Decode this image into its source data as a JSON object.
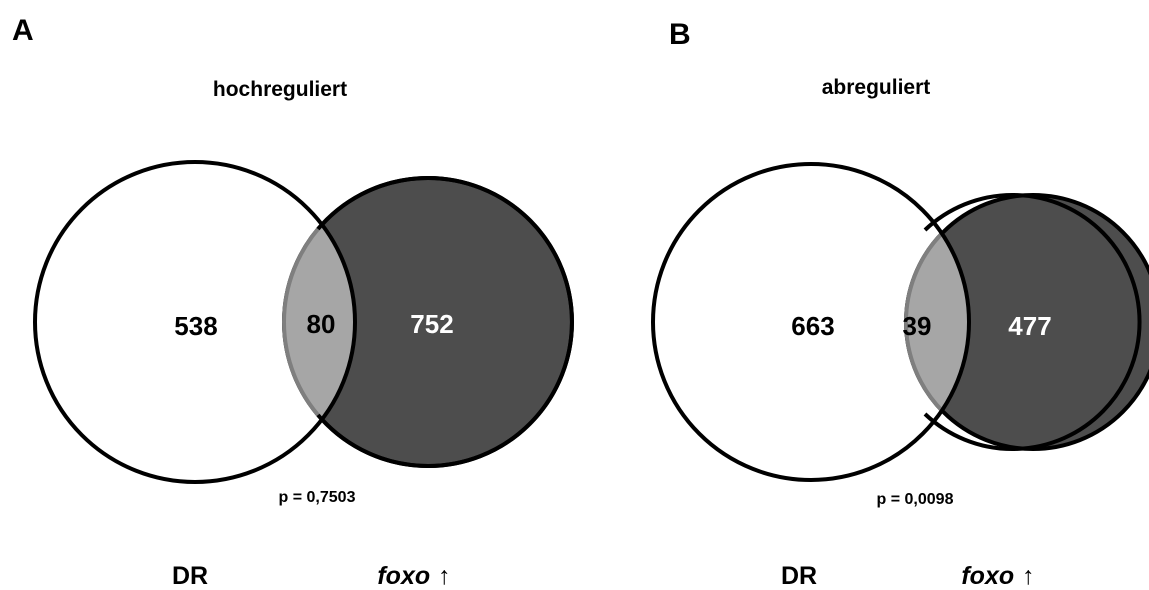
{
  "colors": {
    "left_circle_fill": "#ffffff",
    "right_circle_fill": "#4d4d4d",
    "overlap_fill": "#a6a6a6",
    "overlap_stroke": "#7f7f7f",
    "outline": "#000000",
    "text_dark": "#000000",
    "text_light": "#ffffff"
  },
  "panels": [
    {
      "letter": "A",
      "title": "hochreguliert",
      "left_count": "538",
      "overlap_count": "80",
      "right_count": "752",
      "p_value": "p = 0,7503",
      "left_label": "DR",
      "right_label_italic": "foxo",
      "right_label_arrow": "↑"
    },
    {
      "letter": "B",
      "title": "abreguliert",
      "left_count": "663",
      "overlap_count": "39",
      "right_count": "477",
      "p_value": "p = 0,0098",
      "left_label": "DR",
      "right_label_italic": "foxo",
      "right_label_arrow": "↑"
    }
  ]
}
